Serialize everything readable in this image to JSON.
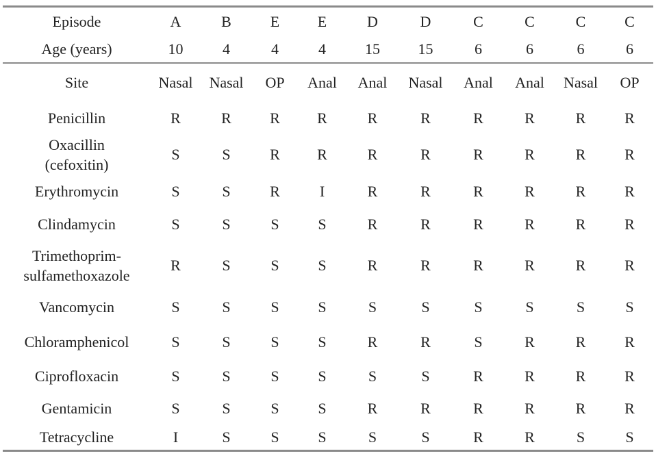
{
  "table": {
    "header": [
      [
        "Episode",
        "A",
        "B",
        "E",
        "E",
        "D",
        "D",
        "C",
        "C",
        "C",
        "C"
      ],
      [
        "Age (years)",
        10,
        4,
        4,
        4,
        15,
        15,
        6,
        6,
        6,
        6
      ],
      [
        "Site",
        "Nasal",
        "Nasal",
        "OP",
        "Anal",
        "Anal",
        "Nasal",
        "Anal",
        "Anal",
        "Nasal",
        "OP"
      ]
    ],
    "rows": [
      [
        "Penicillin",
        "R",
        "R",
        "R",
        "R",
        "R",
        "R",
        "R",
        "R",
        "R",
        "R"
      ],
      [
        "Oxacillin\n(cefoxitin)",
        "S",
        "S",
        "R",
        "R",
        "R",
        "R",
        "R",
        "R",
        "R",
        "R"
      ],
      [
        "Erythromycin",
        "S",
        "S",
        "R",
        "I",
        "R",
        "R",
        "R",
        "R",
        "R",
        "R"
      ],
      [
        "Clindamycin",
        "S",
        "S",
        "S",
        "S",
        "R",
        "R",
        "R",
        "R",
        "R",
        "R"
      ],
      [
        "Trimethoprim-\nsulfamethoxazole",
        "R",
        "S",
        "S",
        "S",
        "R",
        "R",
        "R",
        "R",
        "R",
        "R"
      ],
      [
        "Vancomycin",
        "S",
        "S",
        "S",
        "S",
        "S",
        "S",
        "S",
        "S",
        "S",
        "S"
      ],
      [
        "Chloramphenicol",
        "S",
        "S",
        "S",
        "S",
        "R",
        "R",
        "S",
        "R",
        "R",
        "R"
      ],
      [
        "Ciprofloxacin",
        "S",
        "S",
        "S",
        "S",
        "S",
        "S",
        "R",
        "R",
        "R",
        "R"
      ],
      [
        "Gentamicin",
        "S",
        "S",
        "S",
        "S",
        "R",
        "R",
        "R",
        "R",
        "R",
        "R"
      ],
      [
        "Tetracycline",
        "I",
        "S",
        "S",
        "S",
        "S",
        "S",
        "R",
        "R",
        "S",
        "S"
      ]
    ]
  }
}
